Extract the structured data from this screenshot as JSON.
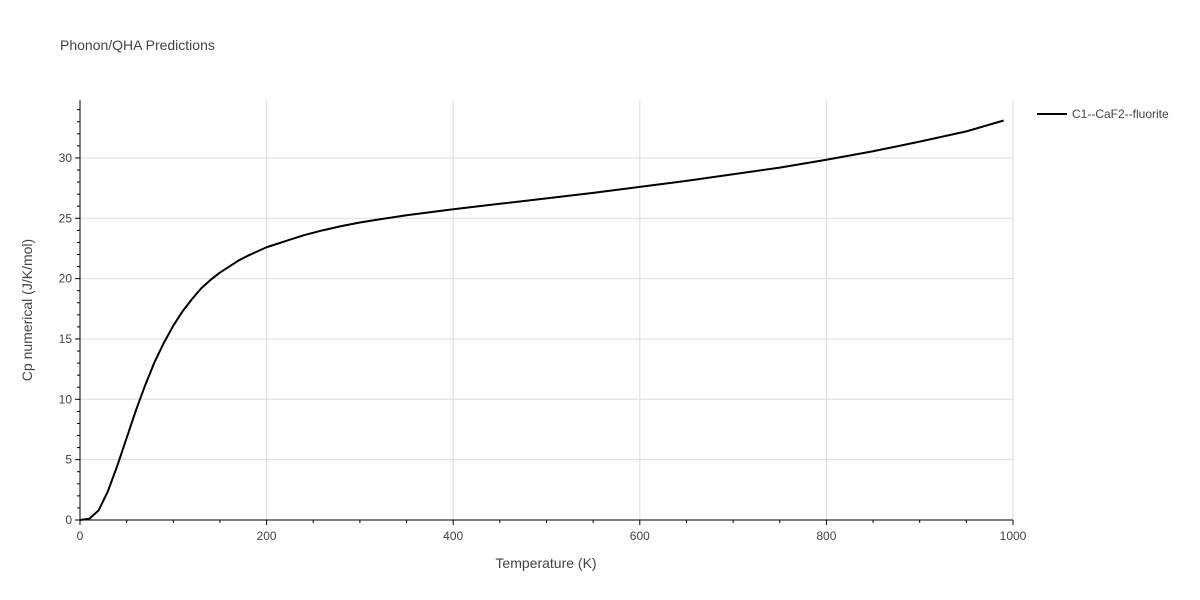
{
  "chart_data": {
    "type": "line",
    "title": "Phonon/QHA Predictions",
    "xlabel": "Temperature (K)",
    "ylabel": "Cp numerical (J/K/mol)",
    "xlim": [
      0,
      1000
    ],
    "ylim": [
      0,
      34.8
    ],
    "x_ticks": [
      0,
      200,
      400,
      600,
      800,
      1000
    ],
    "y_ticks": [
      0,
      5,
      10,
      15,
      20,
      25,
      30
    ],
    "grid": true,
    "legend_position": "top-right",
    "series": [
      {
        "name": "C1--CaF2--fluorite",
        "color": "#000000",
        "x": [
          0,
          10,
          20,
          30,
          40,
          50,
          60,
          70,
          80,
          90,
          100,
          110,
          120,
          130,
          140,
          150,
          160,
          170,
          180,
          200,
          220,
          240,
          260,
          280,
          300,
          320,
          350,
          400,
          450,
          500,
          550,
          600,
          650,
          700,
          750,
          800,
          850,
          900,
          950,
          990
        ],
        "y": [
          0,
          0.1,
          0.8,
          2.4,
          4.5,
          6.8,
          9.1,
          11.2,
          13.1,
          14.7,
          16.1,
          17.3,
          18.3,
          19.2,
          19.9,
          20.5,
          21.0,
          21.5,
          21.9,
          22.6,
          23.1,
          23.6,
          24.0,
          24.35,
          24.65,
          24.9,
          25.25,
          25.75,
          26.2,
          26.65,
          27.1,
          27.6,
          28.1,
          28.65,
          29.2,
          29.85,
          30.55,
          31.35,
          32.2,
          33.1
        ]
      }
    ]
  }
}
